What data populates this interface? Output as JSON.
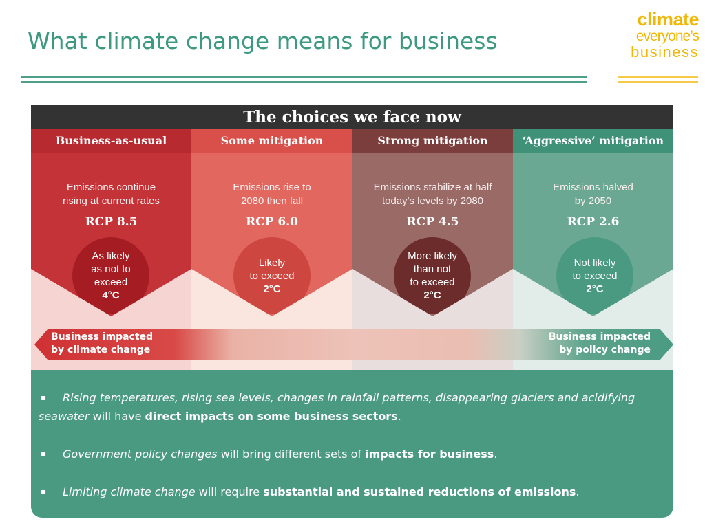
{
  "title": "What climate change means for business",
  "logo": {
    "line1": "climate",
    "line2": "everyone’s",
    "line3": "business"
  },
  "colors": {
    "title": "#3d9a80",
    "logo": "#f2b705",
    "panel": "#4a9a82",
    "banner": "#333333"
  },
  "infographic": {
    "heading": "The choices we face now",
    "columns": [
      {
        "header": "Business-as-usual",
        "desc_line1": "Emissions continue",
        "desc_line2": "rising at current rates",
        "rcp": "RCP 8.5",
        "circle": [
          "As likely",
          "as not to",
          "exceed",
          "4°C"
        ],
        "header_color": "#b72a30",
        "body_color": "#c33337",
        "circle_color": "#a51d22",
        "lower_bg": "#f5d4d2"
      },
      {
        "header": "Some mitigation",
        "desc_line1": "Emissions rise to",
        "desc_line2": "2080 then fall",
        "rcp": "RCP 6.0",
        "circle": [
          "Likely",
          "to exceed",
          "2°C"
        ],
        "header_color": "#d9504a",
        "body_color": "#e2685f",
        "circle_color": "#cd4640",
        "lower_bg": "#fbe5df"
      },
      {
        "header": "Strong mitigation",
        "desc_line1": "Emissions stabilize at half",
        "desc_line2": "today's levels by 2080",
        "rcp": "RCP 4.5",
        "circle": [
          "More likely",
          "than not",
          "to exceed",
          "2°C"
        ],
        "header_color": "#7c3e3c",
        "body_color": "#9a6a67",
        "circle_color": "#6c2c2b",
        "lower_bg": "#e8dedd"
      },
      {
        "header": "‘Aggressive’ mitigation",
        "desc_line1": "Emissions halved",
        "desc_line2": "by 2050",
        "rcp": "RCP 2.6",
        "circle": [
          "Not likely",
          "to exceed",
          "2°C"
        ],
        "header_color": "#3f9278",
        "body_color": "#6ba893",
        "circle_color": "#4a9a82",
        "lower_bg": "#e2ece8"
      }
    ],
    "arrow_left": {
      "line1": "Business impacted",
      "line2": "by climate change"
    },
    "arrow_right": {
      "line1": "Business impacted",
      "line2": "by policy change"
    }
  },
  "bullets": [
    {
      "mark": "▪",
      "italic": "Rising temperatures, rising sea levels, changes in rainfall patterns, disappearing glaciers and acidifying seawater",
      "plain": " will have ",
      "bold": "direct impacts on some business sectors",
      "end": "."
    },
    {
      "mark": "▪",
      "italic": "Government policy changes",
      "plain": " will bring different sets of ",
      "bold": "impacts for business",
      "end": "."
    },
    {
      "mark": "▪",
      "italic": "Limiting climate change",
      "plain": " will require ",
      "bold": "substantial and sustained reductions of emissions",
      "end": "."
    }
  ]
}
